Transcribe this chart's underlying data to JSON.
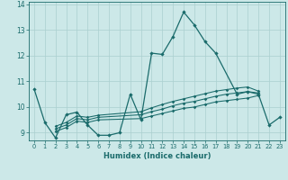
{
  "xlabel": "Humidex (Indice chaleur)",
  "background_color": "#cce8e8",
  "grid_color": "#aacfcf",
  "line_color": "#1a6b6b",
  "xlim": [
    -0.5,
    23.5
  ],
  "ylim": [
    8.7,
    14.1
  ],
  "yticks": [
    9,
    10,
    11,
    12,
    13,
    14
  ],
  "xticks": [
    0,
    1,
    2,
    3,
    4,
    5,
    6,
    7,
    8,
    9,
    10,
    11,
    12,
    13,
    14,
    15,
    16,
    17,
    18,
    19,
    20,
    21,
    22,
    23
  ],
  "line1_x": [
    0,
    1,
    2,
    3,
    4,
    5,
    6,
    7,
    8,
    9,
    10,
    11,
    12,
    13,
    14,
    15,
    16,
    17,
    19,
    20,
    21,
    22,
    23
  ],
  "line1_y": [
    10.7,
    9.4,
    8.8,
    9.7,
    9.8,
    9.3,
    8.9,
    8.9,
    9.0,
    10.5,
    9.5,
    12.1,
    12.05,
    12.75,
    13.7,
    13.2,
    12.55,
    12.1,
    10.5,
    10.6,
    10.5,
    9.3,
    9.6
  ],
  "line2_x": [
    2,
    3,
    4,
    5,
    6,
    10,
    11,
    12,
    13,
    14,
    15,
    16,
    17,
    18,
    19,
    20,
    21
  ],
  "line2_y": [
    9.05,
    9.2,
    9.45,
    9.4,
    9.5,
    9.55,
    9.65,
    9.75,
    9.85,
    9.95,
    10.0,
    10.1,
    10.2,
    10.25,
    10.3,
    10.35,
    10.45
  ],
  "line3_x": [
    2,
    3,
    4,
    5,
    6,
    10,
    11,
    12,
    13,
    14,
    15,
    16,
    17,
    18,
    19,
    20,
    21
  ],
  "line3_y": [
    9.15,
    9.3,
    9.55,
    9.5,
    9.6,
    9.7,
    9.82,
    9.92,
    10.05,
    10.15,
    10.22,
    10.32,
    10.42,
    10.5,
    10.55,
    10.6,
    10.55
  ],
  "line4_x": [
    2,
    3,
    4,
    5,
    6,
    10,
    11,
    12,
    13,
    14,
    15,
    16,
    17,
    18,
    19,
    20,
    21
  ],
  "line4_y": [
    9.25,
    9.4,
    9.65,
    9.6,
    9.68,
    9.82,
    9.97,
    10.1,
    10.22,
    10.32,
    10.42,
    10.52,
    10.62,
    10.68,
    10.74,
    10.78,
    10.62
  ]
}
